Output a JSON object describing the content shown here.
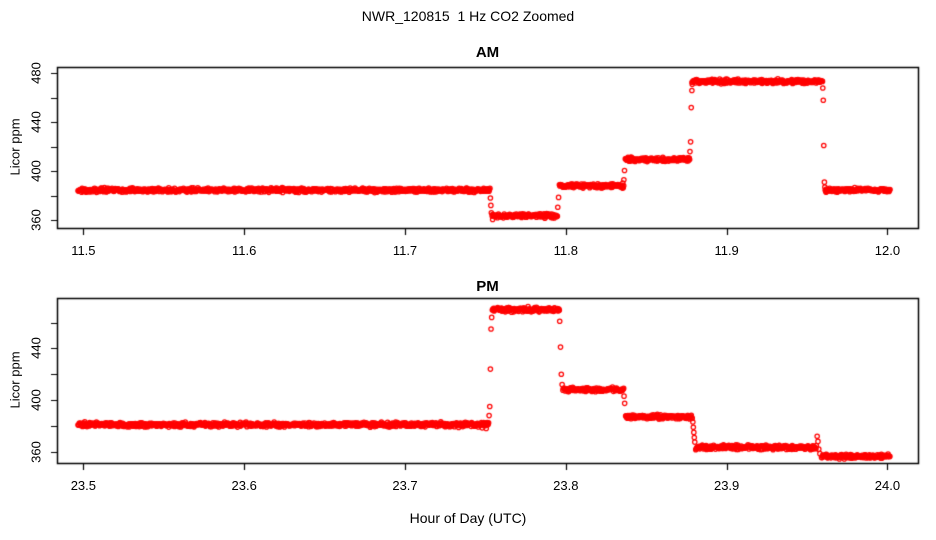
{
  "chart_data": {
    "type": "scatter",
    "title": "NWR_120815  1 Hz CO2 Zoomed",
    "xlabel": "Hour of Day (UTC)",
    "marker": "open-circle",
    "point_color": "#ff0000",
    "axis_color": "#000000",
    "background_color": "#ffffff",
    "sample_rate_hz": 1,
    "grid": false,
    "legend": null,
    "panels": [
      {
        "title": "AM",
        "ylabel": "Licor ppm",
        "xlim": [
          11.4836,
          12.019
        ],
        "ylim": [
          353.5,
          485.2
        ],
        "x_ticks": [
          {
            "v": 11.5,
            "label": "11.5"
          },
          {
            "v": 11.6,
            "label": "11.6"
          },
          {
            "v": 11.7,
            "label": "11.7"
          },
          {
            "v": 11.8,
            "label": "11.8"
          },
          {
            "v": 11.9,
            "label": "11.9"
          },
          {
            "v": 12.0,
            "label": "12.0"
          }
        ],
        "y_ticks": [
          {
            "v": 360,
            "label": "360"
          },
          {
            "v": 380,
            "label": ""
          },
          {
            "v": 400,
            "label": "400"
          },
          {
            "v": 420,
            "label": ""
          },
          {
            "v": 440,
            "label": "440"
          },
          {
            "v": 460,
            "label": ""
          },
          {
            "v": 480,
            "label": "480"
          }
        ],
        "noise_ppm": 1.3,
        "segments": [
          {
            "t_start": 11.4967,
            "t_end": 11.753,
            "ppm": 384.5
          },
          {
            "t_start": 11.7542,
            "t_end": 11.795,
            "ppm": 363.5
          },
          {
            "t_start": 11.796,
            "t_end": 11.836,
            "ppm": 388.0
          },
          {
            "t_start": 11.837,
            "t_end": 11.877,
            "ppm": 409.5
          },
          {
            "t_start": 11.8785,
            "t_end": 11.9597,
            "ppm": 473.5
          },
          {
            "t_start": 11.9613,
            "t_end": 12.0017,
            "ppm": 384.5
          }
        ],
        "transition_points": [
          {
            "t": 11.7531,
            "ppm": 378.0
          },
          {
            "t": 11.7534,
            "ppm": 372.0
          },
          {
            "t": 11.7537,
            "ppm": 366.0
          },
          {
            "t": 11.7545,
            "ppm": 360.5
          },
          {
            "t": 11.795,
            "ppm": 370.5
          },
          {
            "t": 11.7955,
            "ppm": 378.5
          },
          {
            "t": 11.8361,
            "ppm": 393.0
          },
          {
            "t": 11.8365,
            "ppm": 400.5
          },
          {
            "t": 11.8772,
            "ppm": 416.0
          },
          {
            "t": 11.8776,
            "ppm": 424.0
          },
          {
            "t": 11.878,
            "ppm": 452.0
          },
          {
            "t": 11.8784,
            "ppm": 466.0
          },
          {
            "t": 11.8786,
            "ppm": 471.0
          },
          {
            "t": 11.9598,
            "ppm": 468.0
          },
          {
            "t": 11.9601,
            "ppm": 458.0
          },
          {
            "t": 11.9604,
            "ppm": 421.0
          },
          {
            "t": 11.9608,
            "ppm": 391.0
          },
          {
            "t": 11.9611,
            "ppm": 387.0
          }
        ]
      },
      {
        "title": "PM",
        "ylabel": "Licor ppm",
        "xlim": [
          23.4836,
          24.019
        ],
        "ylim": [
          351.3,
          479.0
        ],
        "x_ticks": [
          {
            "v": 23.5,
            "label": "23.5"
          },
          {
            "v": 23.6,
            "label": "23.6"
          },
          {
            "v": 23.7,
            "label": "23.7"
          },
          {
            "v": 23.8,
            "label": "23.8"
          },
          {
            "v": 23.9,
            "label": "23.9"
          },
          {
            "v": 24.0,
            "label": "24.0"
          }
        ],
        "y_ticks": [
          {
            "v": 360,
            "label": "360"
          },
          {
            "v": 380,
            "label": ""
          },
          {
            "v": 400,
            "label": "400"
          },
          {
            "v": 420,
            "label": ""
          },
          {
            "v": 440,
            "label": "440"
          },
          {
            "v": 460,
            "label": ""
          }
        ],
        "noise_ppm": 1.3,
        "segments": [
          {
            "t_start": 23.4967,
            "t_end": 23.752,
            "ppm": 381.0
          },
          {
            "t_start": 23.7543,
            "t_end": 23.796,
            "ppm": 470.0
          },
          {
            "t_start": 23.7982,
            "t_end": 23.836,
            "ppm": 408.0
          },
          {
            "t_start": 23.8372,
            "t_end": 23.8788,
            "ppm": 387.0
          },
          {
            "t_start": 23.8808,
            "t_end": 23.956,
            "ppm": 363.5
          },
          {
            "t_start": 23.959,
            "t_end": 24.0017,
            "ppm": 356.5
          }
        ],
        "transition_points": [
          {
            "t": 23.748,
            "ppm": 378.5
          },
          {
            "t": 23.7505,
            "ppm": 378.0
          },
          {
            "t": 23.7523,
            "ppm": 388.0
          },
          {
            "t": 23.7527,
            "ppm": 395.0
          },
          {
            "t": 23.7531,
            "ppm": 424.0
          },
          {
            "t": 23.7535,
            "ppm": 455.0
          },
          {
            "t": 23.7539,
            "ppm": 464.0
          },
          {
            "t": 23.7962,
            "ppm": 461.0
          },
          {
            "t": 23.7967,
            "ppm": 441.0
          },
          {
            "t": 23.7972,
            "ppm": 420.0
          },
          {
            "t": 23.7977,
            "ppm": 412.0
          },
          {
            "t": 23.8362,
            "ppm": 403.0
          },
          {
            "t": 23.8366,
            "ppm": 397.5
          },
          {
            "t": 23.879,
            "ppm": 383.0
          },
          {
            "t": 23.8793,
            "ppm": 379.0
          },
          {
            "t": 23.8796,
            "ppm": 375.0
          },
          {
            "t": 23.8799,
            "ppm": 371.0
          },
          {
            "t": 23.8802,
            "ppm": 367.5
          },
          {
            "t": 23.9563,
            "ppm": 372.0
          },
          {
            "t": 23.9568,
            "ppm": 368.0
          },
          {
            "t": 23.9573,
            "ppm": 362.0
          },
          {
            "t": 23.958,
            "ppm": 358.5
          }
        ]
      }
    ]
  }
}
